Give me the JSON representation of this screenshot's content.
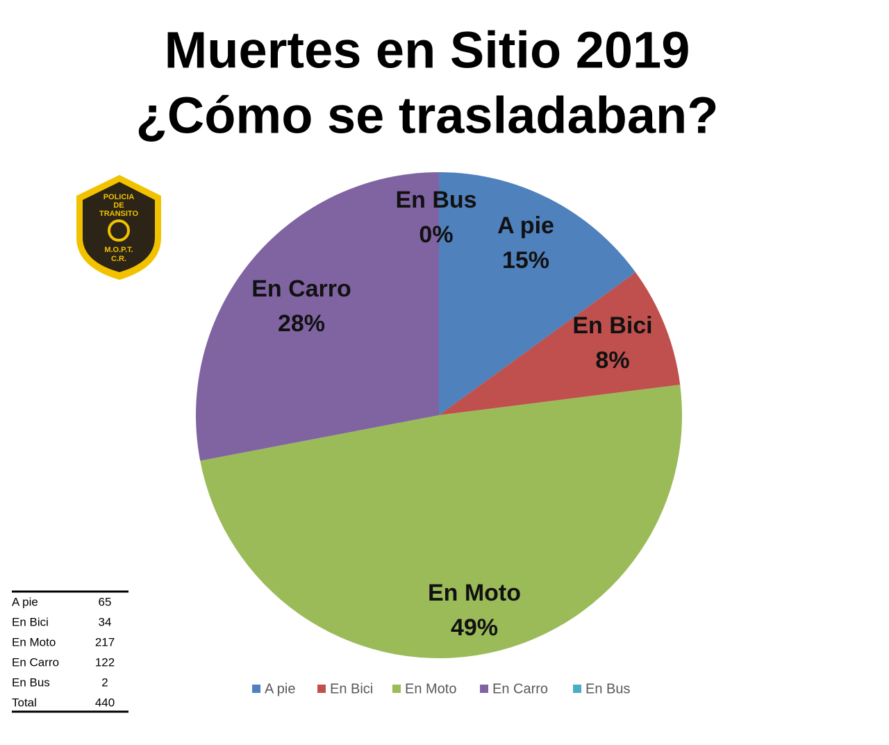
{
  "chart_data": {
    "type": "pie",
    "title": [
      "Muertes en Sitio 2019",
      "¿Cómo se trasladaban?"
    ],
    "categories": [
      "A pie",
      "En Bici",
      "En Moto",
      "En Carro",
      "En Bus"
    ],
    "values": [
      15,
      8,
      49,
      28,
      0
    ],
    "value_labels": [
      "15%",
      "8%",
      "49%",
      "28%",
      "0%"
    ],
    "colors": [
      "#4f81bd",
      "#c0504d",
      "#9bbb59",
      "#8064a2",
      "#4bacc6"
    ],
    "legend": "bottom"
  },
  "table": {
    "rows": [
      [
        "A pie",
        65
      ],
      [
        "En Bici",
        34
      ],
      [
        "En Moto",
        217
      ],
      [
        "En Carro",
        122
      ],
      [
        "En Bus",
        2
      ],
      [
        "Total",
        440
      ]
    ]
  },
  "logo": {
    "lines": [
      "POLICIA",
      "DE",
      "TRANSITO",
      "M.O.P.T.",
      "C.R."
    ]
  }
}
